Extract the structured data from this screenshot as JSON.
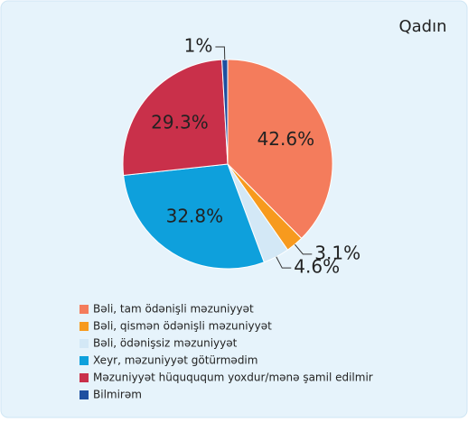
{
  "chart_data": {
    "type": "pie",
    "title": "Qadın",
    "categories": [
      "Bəli, tam ödənişli məzuniyyət",
      "Bəli, qismən ödənişli məzuniyyət",
      "Bəli, ödənişsiz məzuniyyət",
      "Xeyr, məzuniyyət götürmədim",
      "Məzuniyyət hüquququm yoxdur/mənə şamil edilmir",
      "Bilmirəm"
    ],
    "values": [
      42.6,
      3.1,
      4.6,
      32.8,
      29.3,
      1
    ],
    "value_labels": [
      "42.6%",
      "3.1%",
      "4.6%",
      "32.8%",
      "29.3%",
      "1%"
    ],
    "colors": [
      "#f47c5c",
      "#f79a1e",
      "#d3e8f6",
      "#0ea0dc",
      "#c9304a",
      "#1e4fa0"
    ]
  }
}
